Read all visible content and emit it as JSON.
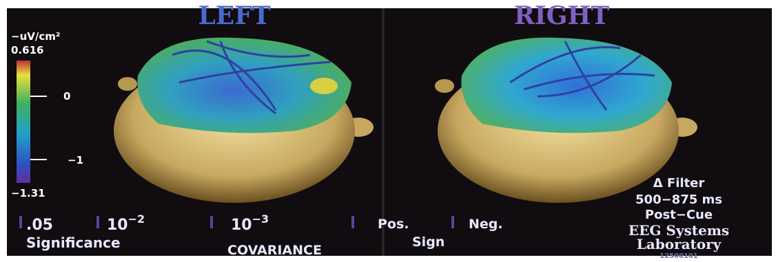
{
  "panels": {
    "left": "LEFT",
    "right": "RIGHT"
  },
  "colorbar": {
    "unit": "−uV/cm²",
    "labels": [
      "0.616",
      "0",
      "−1",
      "−1.31"
    ]
  },
  "legend": {
    "significance": {
      "items": [
        {
          "text": ".05"
        },
        {
          "base": "10",
          "exponent": "−2"
        },
        {
          "base": "10",
          "exponent": "−3"
        }
      ],
      "label": "Significance"
    },
    "covariance": "COVARIANCE",
    "sign": {
      "items": [
        "Pos.",
        "Neg."
      ],
      "label": "Sign"
    }
  },
  "info": {
    "lines": [
      "Δ Filter",
      "500−875 ms",
      "Post−Cue"
    ],
    "lab": [
      "EEG Systems",
      "Laboratory"
    ],
    "code": "12500101"
  }
}
